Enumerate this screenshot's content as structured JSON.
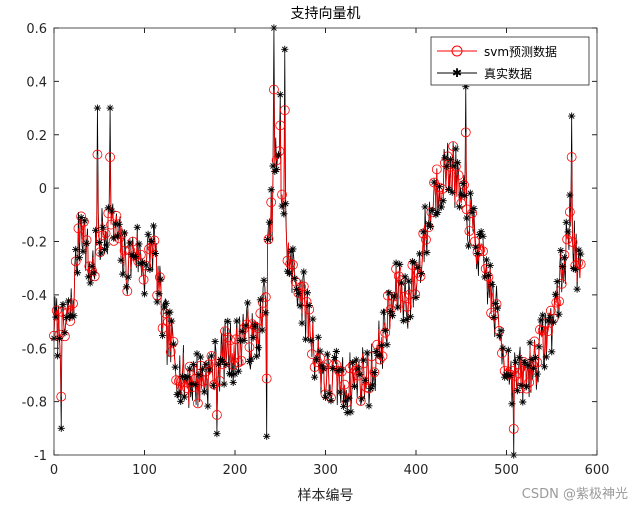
{
  "chart_data": {
    "type": "line",
    "title": "支持向量机",
    "xlabel": "样本编号",
    "ylabel": "",
    "xlim": [
      0,
      600
    ],
    "ylim": [
      -1,
      0.6
    ],
    "xticks": [
      0,
      100,
      200,
      300,
      400,
      500,
      600
    ],
    "yticks": [
      -1,
      -0.8,
      -0.6,
      -0.4,
      -0.2,
      0,
      0.2,
      0.4,
      0.6
    ],
    "xtick_labels": [
      "0",
      "100",
      "200",
      "300",
      "400",
      "500",
      "600"
    ],
    "ytick_labels": [
      "-1",
      "-0.8",
      "-0.6",
      "-0.4",
      "-0.2",
      "0",
      "0.2",
      "0.4",
      "0.6"
    ],
    "grid": false,
    "legend_position": "top-right",
    "series": [
      {
        "name": "svm预测数据",
        "color": "#ff0000",
        "marker": "circle",
        "trend": [
          [
            0,
            -0.5
          ],
          [
            10,
            -0.55
          ],
          [
            20,
            -0.45
          ],
          [
            30,
            -0.1
          ],
          [
            40,
            -0.32
          ],
          [
            50,
            -0.2
          ],
          [
            60,
            -0.12
          ],
          [
            70,
            -0.18
          ],
          [
            80,
            -0.3
          ],
          [
            90,
            -0.22
          ],
          [
            100,
            -0.3
          ],
          [
            110,
            -0.2
          ],
          [
            120,
            -0.5
          ],
          [
            130,
            -0.6
          ],
          [
            140,
            -0.7
          ],
          [
            150,
            -0.72
          ],
          [
            160,
            -0.72
          ],
          [
            170,
            -0.7
          ],
          [
            180,
            -0.68
          ],
          [
            190,
            -0.6
          ],
          [
            200,
            -0.62
          ],
          [
            210,
            -0.52
          ],
          [
            220,
            -0.58
          ],
          [
            230,
            -0.5
          ],
          [
            240,
            -0.12
          ],
          [
            245,
            0.1
          ],
          [
            250,
            0.05
          ],
          [
            255,
            -0.1
          ],
          [
            260,
            -0.3
          ],
          [
            270,
            -0.35
          ],
          [
            280,
            -0.48
          ],
          [
            290,
            -0.62
          ],
          [
            300,
            -0.72
          ],
          [
            310,
            -0.72
          ],
          [
            320,
            -0.74
          ],
          [
            330,
            -0.72
          ],
          [
            340,
            -0.7
          ],
          [
            350,
            -0.7
          ],
          [
            360,
            -0.6
          ],
          [
            370,
            -0.48
          ],
          [
            380,
            -0.38
          ],
          [
            390,
            -0.42
          ],
          [
            400,
            -0.35
          ],
          [
            410,
            -0.18
          ],
          [
            420,
            -0.02
          ],
          [
            430,
            0.05
          ],
          [
            440,
            0.08
          ],
          [
            450,
            -0.05
          ],
          [
            460,
            -0.12
          ],
          [
            470,
            -0.25
          ],
          [
            480,
            -0.35
          ],
          [
            490,
            -0.5
          ],
          [
            500,
            -0.65
          ],
          [
            510,
            -0.72
          ],
          [
            520,
            -0.7
          ],
          [
            530,
            -0.66
          ],
          [
            540,
            -0.58
          ],
          [
            550,
            -0.5
          ],
          [
            560,
            -0.35
          ],
          [
            565,
            -0.25
          ],
          [
            570,
            -0.12
          ],
          [
            575,
            -0.2
          ],
          [
            580,
            -0.35
          ]
        ],
        "noise": 0.055,
        "count": 583
      },
      {
        "name": "真实数据",
        "color": "#000000",
        "marker": "star",
        "trend": [
          [
            0,
            -0.5
          ],
          [
            10,
            -0.55
          ],
          [
            20,
            -0.45
          ],
          [
            30,
            -0.1
          ],
          [
            40,
            -0.32
          ],
          [
            50,
            -0.2
          ],
          [
            60,
            -0.12
          ],
          [
            70,
            -0.18
          ],
          [
            80,
            -0.3
          ],
          [
            90,
            -0.22
          ],
          [
            100,
            -0.3
          ],
          [
            110,
            -0.2
          ],
          [
            120,
            -0.5
          ],
          [
            130,
            -0.6
          ],
          [
            140,
            -0.7
          ],
          [
            150,
            -0.72
          ],
          [
            160,
            -0.72
          ],
          [
            170,
            -0.7
          ],
          [
            180,
            -0.68
          ],
          [
            190,
            -0.6
          ],
          [
            200,
            -0.62
          ],
          [
            210,
            -0.52
          ],
          [
            220,
            -0.58
          ],
          [
            230,
            -0.5
          ],
          [
            240,
            -0.12
          ],
          [
            245,
            0.1
          ],
          [
            250,
            0.05
          ],
          [
            255,
            -0.1
          ],
          [
            260,
            -0.3
          ],
          [
            270,
            -0.35
          ],
          [
            280,
            -0.48
          ],
          [
            290,
            -0.62
          ],
          [
            300,
            -0.72
          ],
          [
            310,
            -0.72
          ],
          [
            320,
            -0.74
          ],
          [
            330,
            -0.72
          ],
          [
            340,
            -0.7
          ],
          [
            350,
            -0.7
          ],
          [
            360,
            -0.6
          ],
          [
            370,
            -0.48
          ],
          [
            380,
            -0.38
          ],
          [
            390,
            -0.42
          ],
          [
            400,
            -0.35
          ],
          [
            410,
            -0.18
          ],
          [
            420,
            -0.02
          ],
          [
            430,
            0.05
          ],
          [
            440,
            0.08
          ],
          [
            450,
            -0.05
          ],
          [
            460,
            -0.12
          ],
          [
            470,
            -0.25
          ],
          [
            480,
            -0.35
          ],
          [
            490,
            -0.5
          ],
          [
            500,
            -0.65
          ],
          [
            510,
            -0.72
          ],
          [
            520,
            -0.7
          ],
          [
            530,
            -0.66
          ],
          [
            540,
            -0.58
          ],
          [
            550,
            -0.5
          ],
          [
            560,
            -0.35
          ],
          [
            565,
            -0.25
          ],
          [
            570,
            -0.12
          ],
          [
            575,
            -0.2
          ],
          [
            580,
            -0.35
          ]
        ],
        "noise": 0.12,
        "count": 583,
        "extremes": [
          [
            8,
            -0.9
          ],
          [
            243,
            0.6
          ],
          [
            250,
            0.35
          ],
          [
            255,
            0.52
          ],
          [
            455,
            0.38
          ],
          [
            508,
            -1.0
          ],
          [
            572,
            0.27
          ],
          [
            48,
            0.3
          ],
          [
            62,
            0.3
          ],
          [
            180,
            -0.92
          ],
          [
            235,
            -0.93
          ]
        ]
      }
    ]
  },
  "watermark": "CSDN @紫极神光"
}
